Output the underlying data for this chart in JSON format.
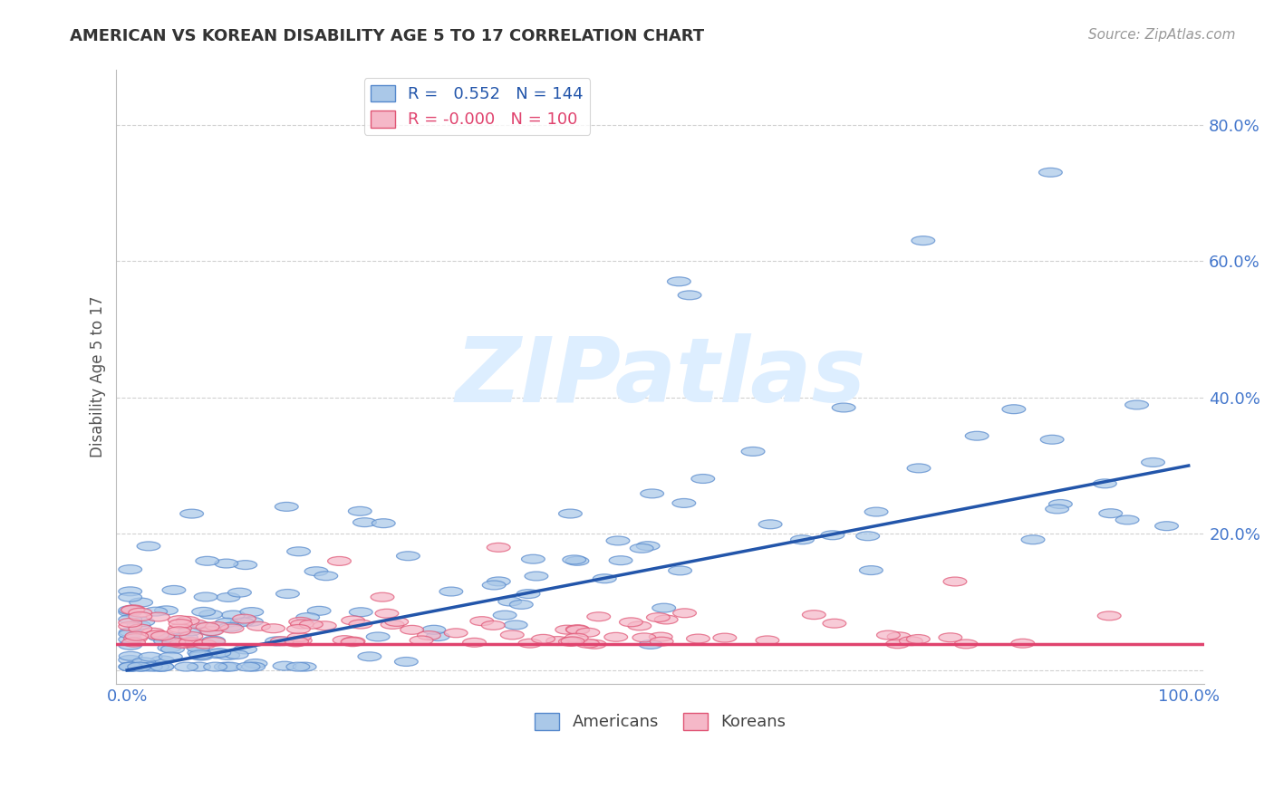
{
  "title": "AMERICAN VS KOREAN DISABILITY AGE 5 TO 17 CORRELATION CHART",
  "source": "Source: ZipAtlas.com",
  "ylabel": "Disability Age 5 to 17",
  "r_american": 0.552,
  "n_american": 144,
  "r_korean": -0.0,
  "n_korean": 100,
  "american_fill": "#aac8e8",
  "american_edge": "#5588cc",
  "korean_fill": "#f5b8c8",
  "korean_edge": "#e05575",
  "american_line_color": "#2255aa",
  "korean_line_color": "#e0436e",
  "background_color": "#ffffff",
  "watermark_text": "ZIPatlas",
  "watermark_color": "#ddeeff",
  "xlim": [
    0.0,
    1.0
  ],
  "ylim": [
    0.0,
    0.88
  ],
  "ytick_positions": [
    0.0,
    0.2,
    0.4,
    0.6,
    0.8
  ],
  "ytick_labels": [
    "",
    "20.0%",
    "40.0%",
    "60.0%",
    "80.0%"
  ],
  "xtick_positions": [
    0.0,
    1.0
  ],
  "xtick_labels": [
    "0.0%",
    "100.0%"
  ],
  "grid_color": "#cccccc",
  "title_color": "#333333",
  "tick_label_color": "#4477cc",
  "title_fontsize": 13,
  "source_fontsize": 11,
  "tick_fontsize": 13,
  "ylabel_fontsize": 12,
  "legend_fontsize": 13,
  "am_line_start_y": 0.0,
  "am_line_end_y": 0.3,
  "ko_line_y": 0.038
}
